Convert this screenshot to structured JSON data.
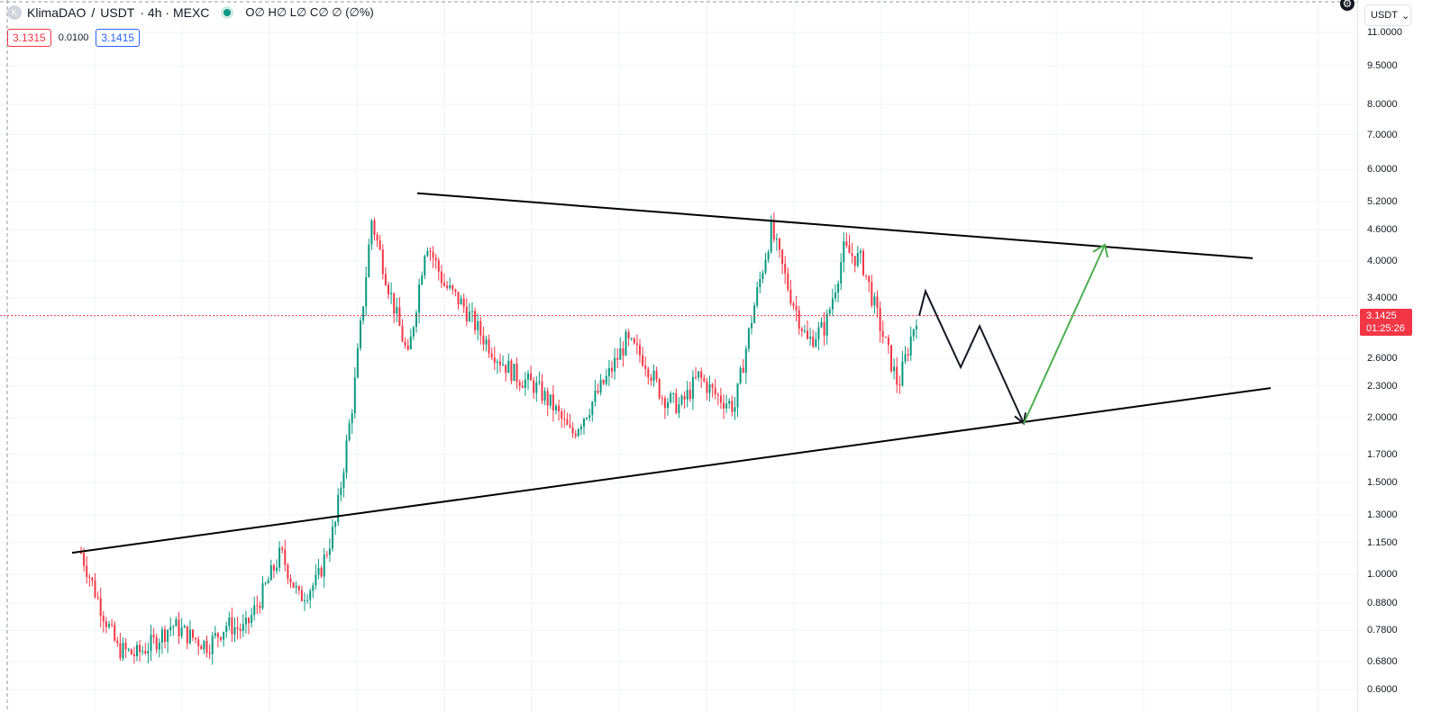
{
  "legend": {
    "symbol_logo": "K",
    "symbol": "KlimaDAO",
    "separator": "/",
    "quote": "USDT",
    "interval_exchange": "· 4h · MEXC",
    "ohlc": "O∅ H∅ L∅ C∅ ∅ (∅%)"
  },
  "quote_row": {
    "sell": "3.1315",
    "spread": "0.0100",
    "buy": "3.1415"
  },
  "currency": {
    "label": "USDT",
    "chevron": "⌄"
  },
  "settings_icon": "gear-icon",
  "price_badge": {
    "price": "3.1425",
    "countdown": "01:25:26"
  },
  "price_axis": {
    "scale": "log",
    "ticks": [
      {
        "label": "11.0000",
        "value": 11.0
      },
      {
        "label": "9.5000",
        "value": 9.5
      },
      {
        "label": "8.0000",
        "value": 8.0
      },
      {
        "label": "7.0000",
        "value": 7.0
      },
      {
        "label": "6.0000",
        "value": 6.0
      },
      {
        "label": "5.2000",
        "value": 5.2
      },
      {
        "label": "4.6000",
        "value": 4.6
      },
      {
        "label": "4.0000",
        "value": 4.0
      },
      {
        "label": "3.4000",
        "value": 3.4
      },
      {
        "label": "2.6000",
        "value": 2.6
      },
      {
        "label": "2.3000",
        "value": 2.3
      },
      {
        "label": "2.0000",
        "value": 2.0
      },
      {
        "label": "1.7000",
        "value": 1.7
      },
      {
        "label": "1.5000",
        "value": 1.5
      },
      {
        "label": "1.3000",
        "value": 1.3
      },
      {
        "label": "1.1500",
        "value": 1.15
      },
      {
        "label": "1.0000",
        "value": 1.0
      },
      {
        "label": "0.8800",
        "value": 0.88
      },
      {
        "label": "0.7800",
        "value": 0.78
      },
      {
        "label": "0.6800",
        "value": 0.68
      },
      {
        "label": "0.6000",
        "value": 0.6
      }
    ]
  },
  "colors": {
    "up": "#089981",
    "down": "#f23645",
    "trendline": "#000000",
    "projection": "#131722",
    "target_arrow": "#4caf50",
    "grid": "#f0f3fa",
    "current_price_line": "#f23645"
  },
  "chart_data": {
    "type": "candlestick",
    "current_price": 3.1425,
    "price_path": [
      1.1,
      0.88,
      0.72,
      0.7,
      0.74,
      0.8,
      0.76,
      0.73,
      0.8,
      0.78,
      0.92,
      1.1,
      0.9,
      0.97,
      1.25,
      2.2,
      4.8,
      3.5,
      2.6,
      4.4,
      3.6,
      3.3,
      2.9,
      2.6,
      2.4,
      2.3,
      2.1,
      1.85,
      2.1,
      2.4,
      2.8,
      2.6,
      2.2,
      2.1,
      2.4,
      2.2,
      2.1,
      3.2,
      4.6,
      3.5,
      2.8,
      3.0,
      4.2,
      4.0,
      3.0,
      2.3,
      3.14
    ],
    "drawings": {
      "resistance_line": {
        "from": {
          "price": 5.4
        },
        "to": {
          "price": 4.05
        }
      },
      "support_line": {
        "from": {
          "price": 1.1
        },
        "to": {
          "price": 2.28
        }
      },
      "projected_path": [
        3.14,
        3.5,
        2.5,
        3.0,
        1.95
      ],
      "target_arrow": {
        "from_price": 1.95,
        "to_price": 4.3
      }
    }
  }
}
